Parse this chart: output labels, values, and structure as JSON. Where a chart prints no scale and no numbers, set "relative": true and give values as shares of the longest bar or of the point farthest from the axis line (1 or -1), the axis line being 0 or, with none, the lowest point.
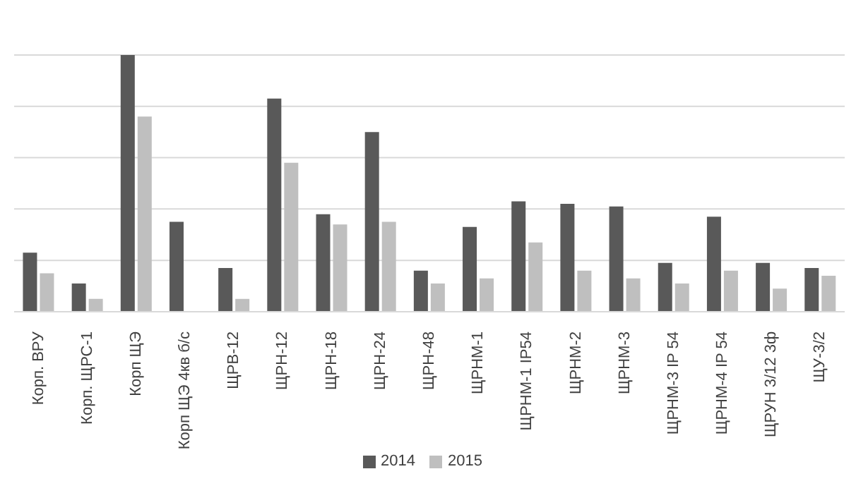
{
  "chart_data": {
    "type": "bar",
    "relative": true,
    "grid": "y",
    "legend": "bottom",
    "categories": [
      "Корп. ВРУ",
      "Корп. ЩРС-1",
      "Корп ЩЭ",
      "Корп ЩЭ 4кв б/с",
      "ЩРВ-12",
      "ЩРН-12",
      "ЩРН-18",
      "ЩРН-24",
      "ЩРН-48",
      "ЩРНМ-1",
      "ЩРНМ-1 IP54",
      "ЩРНМ-2",
      "ЩРНМ-3",
      "ЩРНМ-3 IP 54",
      "ЩРНМ-4 IP 54",
      "ЩРУН 3/12 3ф",
      "ЩУ-3/2"
    ],
    "series": [
      {
        "name": "2014",
        "color": "#595959",
        "values": [
          0.23,
          0.11,
          1,
          0.35,
          0.17,
          0.83,
          0.38,
          0.7,
          0.16,
          0.33,
          0.43,
          0.42,
          0.41,
          0.19,
          0.37,
          0.19,
          0.17
        ]
      },
      {
        "name": "2015",
        "color": "#bfbfbf",
        "values": [
          0.15,
          0.05,
          0.76,
          null,
          0.05,
          0.58,
          0.34,
          0.35,
          0.11,
          0.13,
          0.27,
          0.16,
          0.13,
          0.11,
          0.16,
          0.09,
          0.14
        ]
      }
    ]
  }
}
